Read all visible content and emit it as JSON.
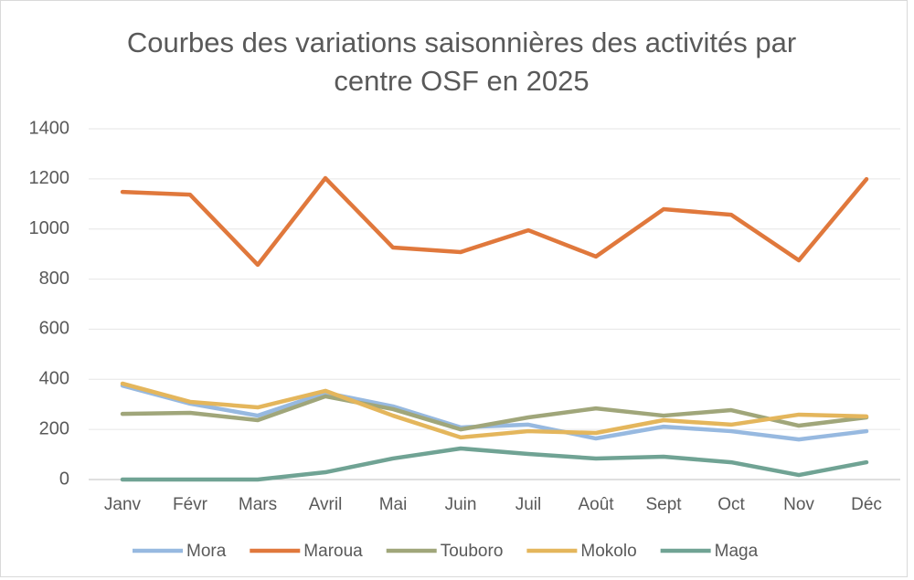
{
  "chart_data": {
    "type": "line",
    "title": "Courbes des variations saisonnières des activités par centre OSF en 2025",
    "categories": [
      "Janv",
      "Févr",
      "Mars",
      "Avril",
      "Mai",
      "Juin",
      "Juil",
      "Août",
      "Sept",
      "Oct",
      "Nov",
      "Déc"
    ],
    "series": [
      {
        "name": "Mora",
        "color": "#97b9e0",
        "values": [
          375,
          303,
          255,
          346,
          292,
          208,
          219,
          164,
          211,
          193,
          160,
          193
        ]
      },
      {
        "name": "Maroua",
        "color": "#e0783c",
        "values": [
          1148,
          1137,
          857,
          1203,
          926,
          908,
          995,
          890,
          1079,
          1057,
          875,
          1199
        ]
      },
      {
        "name": "Touboro",
        "color": "#a0a67a",
        "values": [
          262,
          266,
          237,
          332,
          281,
          200,
          248,
          284,
          255,
          277,
          215,
          248
        ]
      },
      {
        "name": "Mokolo",
        "color": "#e4b65c",
        "values": [
          383,
          310,
          288,
          354,
          255,
          168,
          193,
          186,
          237,
          219,
          259,
          252
        ]
      },
      {
        "name": "Maga",
        "color": "#70a394",
        "values": [
          0,
          0,
          0,
          29,
          84,
          124,
          102,
          84,
          91,
          69,
          18,
          69
        ]
      }
    ],
    "ylim": [
      0,
      1400
    ],
    "yticks": [
      0,
      200,
      400,
      600,
      800,
      1000,
      1200,
      1400
    ],
    "grid": true,
    "legend": "bottom"
  }
}
